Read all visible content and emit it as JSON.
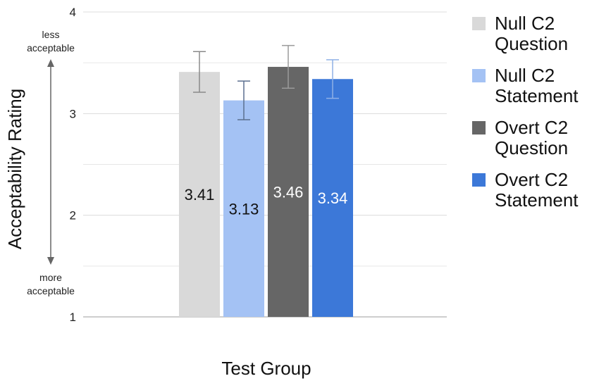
{
  "chart_data": {
    "type": "bar",
    "title": "",
    "xlabel": "Test Group",
    "ylabel": "Acceptability Rating",
    "ylim": [
      1,
      4
    ],
    "yticks": [
      "1",
      "2",
      "3",
      "4"
    ],
    "grid": "horizontal, every 0.5",
    "legend_position": "right",
    "annotations": {
      "top": [
        "less",
        "acceptable"
      ],
      "bottom": [
        "more",
        "acceptable"
      ]
    },
    "series": [
      {
        "name_lines": [
          "Null C2",
          "Question"
        ],
        "value": 3.41,
        "label": "3.41",
        "err_low": 3.21,
        "err_high": 3.61,
        "color": "#d9d9d9",
        "label_color": "#111111",
        "err_color": "#8a8a8a"
      },
      {
        "name_lines": [
          "Null C2",
          "Statement"
        ],
        "value": 3.13,
        "label": "3.13",
        "err_low": 2.94,
        "err_high": 3.32,
        "color": "#a4c2f4",
        "label_color": "#111111",
        "err_color": "#5b6f8f"
      },
      {
        "name_lines": [
          "Overt C2",
          "Question"
        ],
        "value": 3.46,
        "label": "3.46",
        "err_low": 3.25,
        "err_high": 3.67,
        "color": "#666666",
        "label_color": "#ffffff",
        "err_color": "#9a9a9a"
      },
      {
        "name_lines": [
          "Overt C2",
          "Statement"
        ],
        "value": 3.34,
        "label": "3.34",
        "err_low": 3.15,
        "err_high": 3.53,
        "color": "#3c78d8",
        "label_color": "#ffffff",
        "err_color": "#8fb0e6"
      }
    ]
  }
}
